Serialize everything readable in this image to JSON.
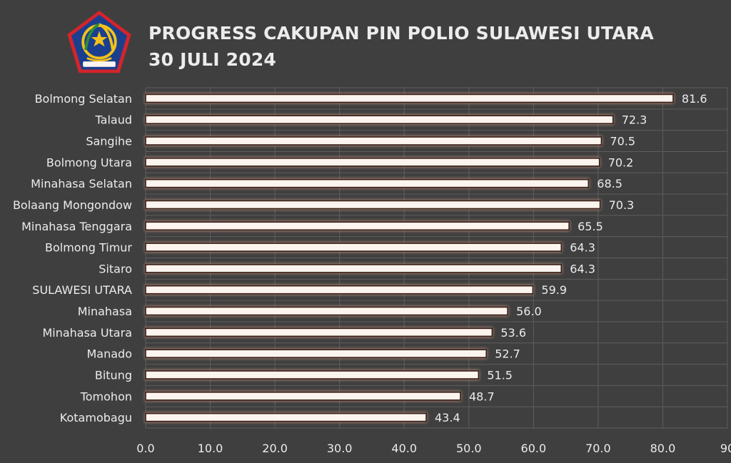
{
  "header": {
    "title_line1": "PROGRESS CAKUPAN PIN POLIO SULAWESI UTARA",
    "title_line2": "30 JULI 2024",
    "logo_icon": "provincial-emblem-icon",
    "logo_colors": [
      "#1b3f8f",
      "#d4242a",
      "#f2c21a",
      "#2e8b3a"
    ]
  },
  "chart_data": {
    "type": "bar",
    "orientation": "horizontal",
    "categories": [
      "Bolmong Selatan",
      "Talaud",
      "Sangihe",
      "Bolmong Utara",
      "Minahasa Selatan",
      "Bolaang Mongondow",
      "Minahasa Tenggara",
      "Bolmong Timur",
      "Sitaro",
      "SULAWESI UTARA",
      "Minahasa",
      "Minahasa Utara",
      "Manado",
      "Bitung",
      "Tomohon",
      "Kotamobagu"
    ],
    "values": [
      81.6,
      72.3,
      70.5,
      70.2,
      68.5,
      70.3,
      65.5,
      64.3,
      64.3,
      59.9,
      56.0,
      53.6,
      52.7,
      51.5,
      48.7,
      43.4
    ],
    "data_labels": [
      "81.6",
      "72.3",
      "70.5",
      "70.2",
      "68.5",
      "70.3",
      "65.5",
      "64.3",
      "64.3",
      "59.9",
      "56.0",
      "53.6",
      "52.7",
      "51.5",
      "48.7",
      "43.4"
    ],
    "xlim": [
      0,
      90
    ],
    "x_ticks": [
      "0.0",
      "10.0",
      "20.0",
      "30.0",
      "40.0",
      "50.0",
      "60.0",
      "70.0",
      "80.0",
      "90"
    ],
    "grid": true,
    "legend": "none",
    "colors": {
      "background": "#3f3f3f",
      "bar_fill": "#fbf4ef",
      "bar_stroke": "#3a1e17",
      "bar_glow": "#c79a86",
      "grid": "#5e5e5e",
      "text": "#ececec"
    }
  }
}
